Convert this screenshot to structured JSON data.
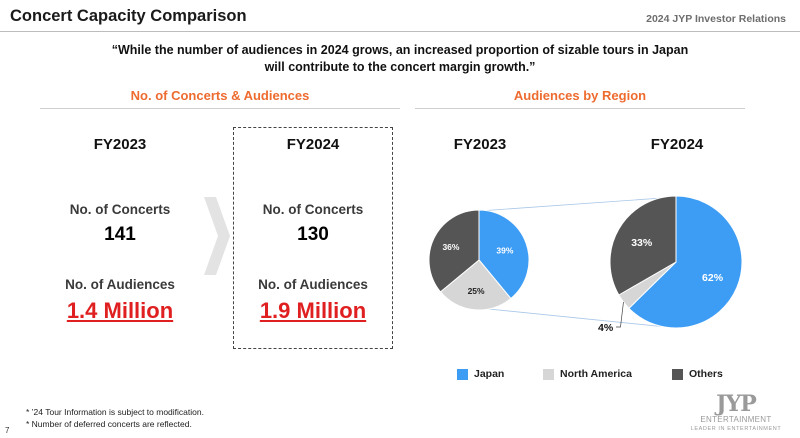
{
  "header": {
    "title": "Concert Capacity Comparison",
    "tag": "2024 JYP Investor Relations"
  },
  "quote": {
    "line1": "“While the number of audiences in 2024 grows, an increased proportion of sizable tours in Japan",
    "line2": "will contribute to the concert margin growth.”"
  },
  "left_section": {
    "title": "No. of Concerts & Audiences",
    "fy2023": {
      "year": "FY2023",
      "concerts_label": "No. of Concerts",
      "concerts": "141",
      "audiences_label": "No. of Audiences",
      "audiences": "1.4 Million"
    },
    "fy2024": {
      "year": "FY2024",
      "concerts_label": "No. of Concerts",
      "concerts": "130",
      "audiences_label": "No. of Audiences",
      "audiences": "1.9 Million"
    }
  },
  "right_section": {
    "title": "Audiences by Region"
  },
  "chart_data": [
    {
      "type": "pie",
      "title": "FY2023",
      "categories": [
        "Japan",
        "North America",
        "Others"
      ],
      "values": [
        39,
        25,
        36
      ],
      "labels": [
        "39%",
        "25%",
        "36%"
      ],
      "colors": [
        "#3d9df5",
        "#d6d6d6",
        "#555555"
      ]
    },
    {
      "type": "pie",
      "title": "FY2024",
      "categories": [
        "Japan",
        "North America",
        "Others"
      ],
      "values": [
        62,
        4,
        33
      ],
      "labels": [
        "62%",
        "4%",
        "33%"
      ],
      "colors": [
        "#3d9df5",
        "#d6d6d6",
        "#555555"
      ]
    }
  ],
  "legend": {
    "japan": "Japan",
    "north_america": "North America",
    "others": "Others"
  },
  "notes": {
    "note1": "* ’24 Tour Information is subject to modification.",
    "note2": "* Number of deferred concerts are reflected."
  },
  "page_number": "7",
  "logo": {
    "mark": "JYP",
    "name": "ENTERTAINMENT",
    "tagline": "LEADER IN ENTERTAINMENT"
  }
}
